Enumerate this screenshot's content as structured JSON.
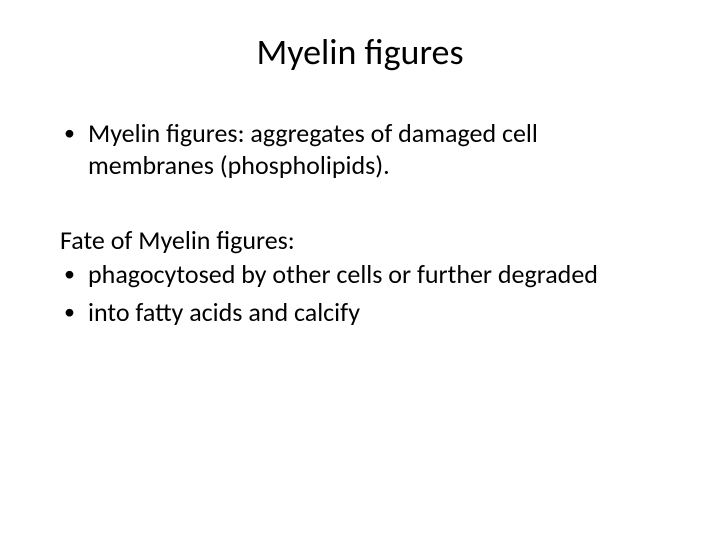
{
  "title": "Myelin figures",
  "intro_bullets": [
    "Myelin figures: aggregates of damaged cell membranes (phospholipids)."
  ],
  "section_label": "Fate of Myelin figures:",
  "fate_bullets": [
    "phagocytosed by other cells or further degraded",
    "into fatty acids and calcify"
  ],
  "colors": {
    "background": "#ffffff",
    "text": "#000000"
  },
  "typography": {
    "title_fontsize_pt": 36,
    "body_fontsize_pt": 26,
    "font_family": "Calibri"
  }
}
